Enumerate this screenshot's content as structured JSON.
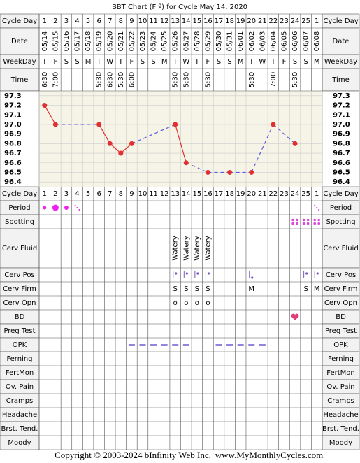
{
  "header": {
    "title": "BBT Chart (F º) for Cycle May 14, 2020"
  },
  "labels": {
    "cycle_day": "Cycle Day",
    "date": "Date",
    "weekday": "WeekDay",
    "time": "Time"
  },
  "cycle_day": [
    1,
    2,
    3,
    4,
    5,
    6,
    7,
    8,
    9,
    10,
    11,
    12,
    13,
    14,
    15,
    16,
    17,
    18,
    19,
    20,
    21,
    22,
    23,
    24,
    25,
    1
  ],
  "weekdays": [
    "T",
    "F",
    "S",
    "S",
    "M",
    "T",
    "W",
    "T",
    "F",
    "S",
    "S",
    "M",
    "T",
    "W",
    "T",
    "F",
    "S",
    "S",
    "M",
    "T",
    "W",
    "T",
    "F",
    "S",
    "S",
    "M"
  ],
  "times": [
    "6:30",
    "7:00",
    null,
    null,
    null,
    "5:30",
    "6:30",
    "5:30",
    "6:00",
    null,
    null,
    null,
    "5:30",
    "5:30",
    null,
    "5:30",
    null,
    null,
    null,
    "5:30",
    null,
    "7:00",
    null,
    "5:30",
    null,
    null
  ],
  "chart_data": {
    "type": "line",
    "categories": [
      "05/14",
      "05/15",
      "05/16",
      "05/17",
      "05/18",
      "05/19",
      "05/20",
      "05/21",
      "05/22",
      "05/23",
      "05/24",
      "05/25",
      "05/26",
      "05/27",
      "05/28",
      "05/29",
      "05/30",
      "05/31",
      "06/01",
      "06/02",
      "06/03",
      "06/04",
      "06/05",
      "06/06",
      "06/07",
      "06/08"
    ],
    "values": [
      97.2,
      97.0,
      null,
      null,
      null,
      97.0,
      96.8,
      96.7,
      96.8,
      null,
      null,
      null,
      97.0,
      96.6,
      null,
      96.5,
      null,
      96.5,
      null,
      96.5,
      null,
      97.0,
      null,
      96.8,
      null,
      null
    ],
    "color": "#e03030",
    "gap_color": "#5a5ae0",
    "ylim": [
      96.35,
      97.35
    ],
    "yticks": [
      97.3,
      97.2,
      97.1,
      {
        "value": 97,
        "label": "97.0"
      },
      96.9,
      96.8,
      96.7,
      96.6,
      96.5,
      96.4
    ],
    "grid": true
  },
  "rows": [
    {
      "label": "Period"
    },
    {
      "label": "Spotting"
    },
    {
      "label": "Cerv Fluid",
      "cells": [
        null,
        null,
        null,
        null,
        null,
        null,
        null,
        null,
        null,
        null,
        null,
        null,
        "Watery",
        "Watery",
        "Watery",
        "Watery",
        null,
        null,
        null,
        null,
        null,
        null,
        null,
        null,
        null,
        null
      ]
    },
    {
      "label": "Cerv Pos"
    },
    {
      "label": "Cerv Firm",
      "cells": [
        null,
        null,
        null,
        null,
        null,
        null,
        null,
        null,
        null,
        null,
        null,
        null,
        "S",
        "S",
        "S",
        "S",
        null,
        null,
        null,
        "M",
        null,
        null,
        null,
        null,
        "S",
        "M"
      ]
    },
    {
      "label": "Cerv Opn",
      "cells": [
        null,
        null,
        null,
        null,
        null,
        null,
        null,
        null,
        null,
        null,
        null,
        null,
        "o",
        "o",
        "o",
        "o",
        null,
        null,
        null,
        null,
        null,
        null,
        null,
        null,
        null,
        null
      ]
    },
    {
      "label": "BD"
    },
    {
      "label": "Preg Test"
    },
    {
      "label": "OPK"
    },
    {
      "label": "Ferning"
    },
    {
      "label": "FertMon"
    },
    {
      "label": "Ov. Pain"
    },
    {
      "label": "Cramps"
    },
    {
      "label": "Headache"
    },
    {
      "label": "Brst. Tend."
    },
    {
      "label": "Moody"
    }
  ],
  "footer": {
    "copyright": "Copyright © 2003-2024 bInfinity Web Inc.",
    "site": "www.MyMonthlyCycles.com"
  }
}
